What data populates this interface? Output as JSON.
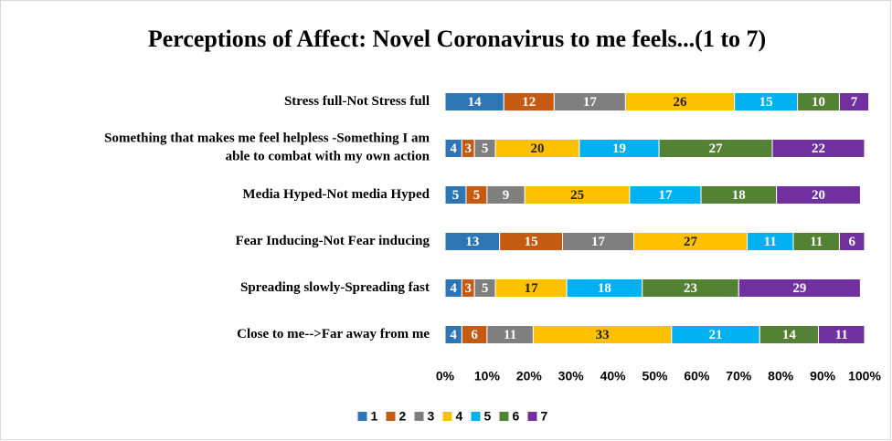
{
  "chart_data": {
    "type": "stacked_barh",
    "title": "Perceptions of Affect: Novel Coronavirus to me feels...(1 to 7)",
    "categories": [
      "Stress full-Not Stress full",
      "Something that makes me feel helpless -Something I am\nable to combat with my own action",
      "Media Hyped-Not media Hyped",
      "Fear Inducing-Not Fear inducing",
      "Spreading slowly-Spreading fast",
      "Close to me-->Far away from me"
    ],
    "series": [
      {
        "name": "1",
        "color": "#2e75b6",
        "values": [
          14,
          4,
          5,
          13,
          4,
          4
        ]
      },
      {
        "name": "2",
        "color": "#c55a11",
        "values": [
          12,
          3,
          5,
          15,
          3,
          6
        ]
      },
      {
        "name": "3",
        "color": "#7f7f7f",
        "values": [
          17,
          5,
          9,
          17,
          5,
          11
        ]
      },
      {
        "name": "4",
        "color": "#ffc000",
        "values": [
          26,
          20,
          25,
          27,
          17,
          33
        ]
      },
      {
        "name": "5",
        "color": "#00b0f0",
        "values": [
          15,
          19,
          17,
          11,
          18,
          21
        ]
      },
      {
        "name": "6",
        "color": "#548235",
        "values": [
          10,
          27,
          18,
          11,
          23,
          14
        ]
      },
      {
        "name": "7",
        "color": "#7030a0",
        "values": [
          7,
          22,
          20,
          6,
          29,
          11
        ]
      }
    ],
    "xlim": [
      0,
      100
    ],
    "xticks": [
      {
        "value": 0,
        "label": "0%"
      },
      {
        "value": 10,
        "label": "10%"
      },
      {
        "value": 20,
        "label": "20%"
      },
      {
        "value": 30,
        "label": "30%"
      },
      {
        "value": 40,
        "label": "40%"
      },
      {
        "value": 50,
        "label": "50%"
      },
      {
        "value": 60,
        "label": "60%"
      },
      {
        "value": 70,
        "label": "70%"
      },
      {
        "value": 80,
        "label": "80%"
      },
      {
        "value": 90,
        "label": "90%"
      },
      {
        "value": 100,
        "label": "100%"
      }
    ],
    "legend": "bottom"
  }
}
